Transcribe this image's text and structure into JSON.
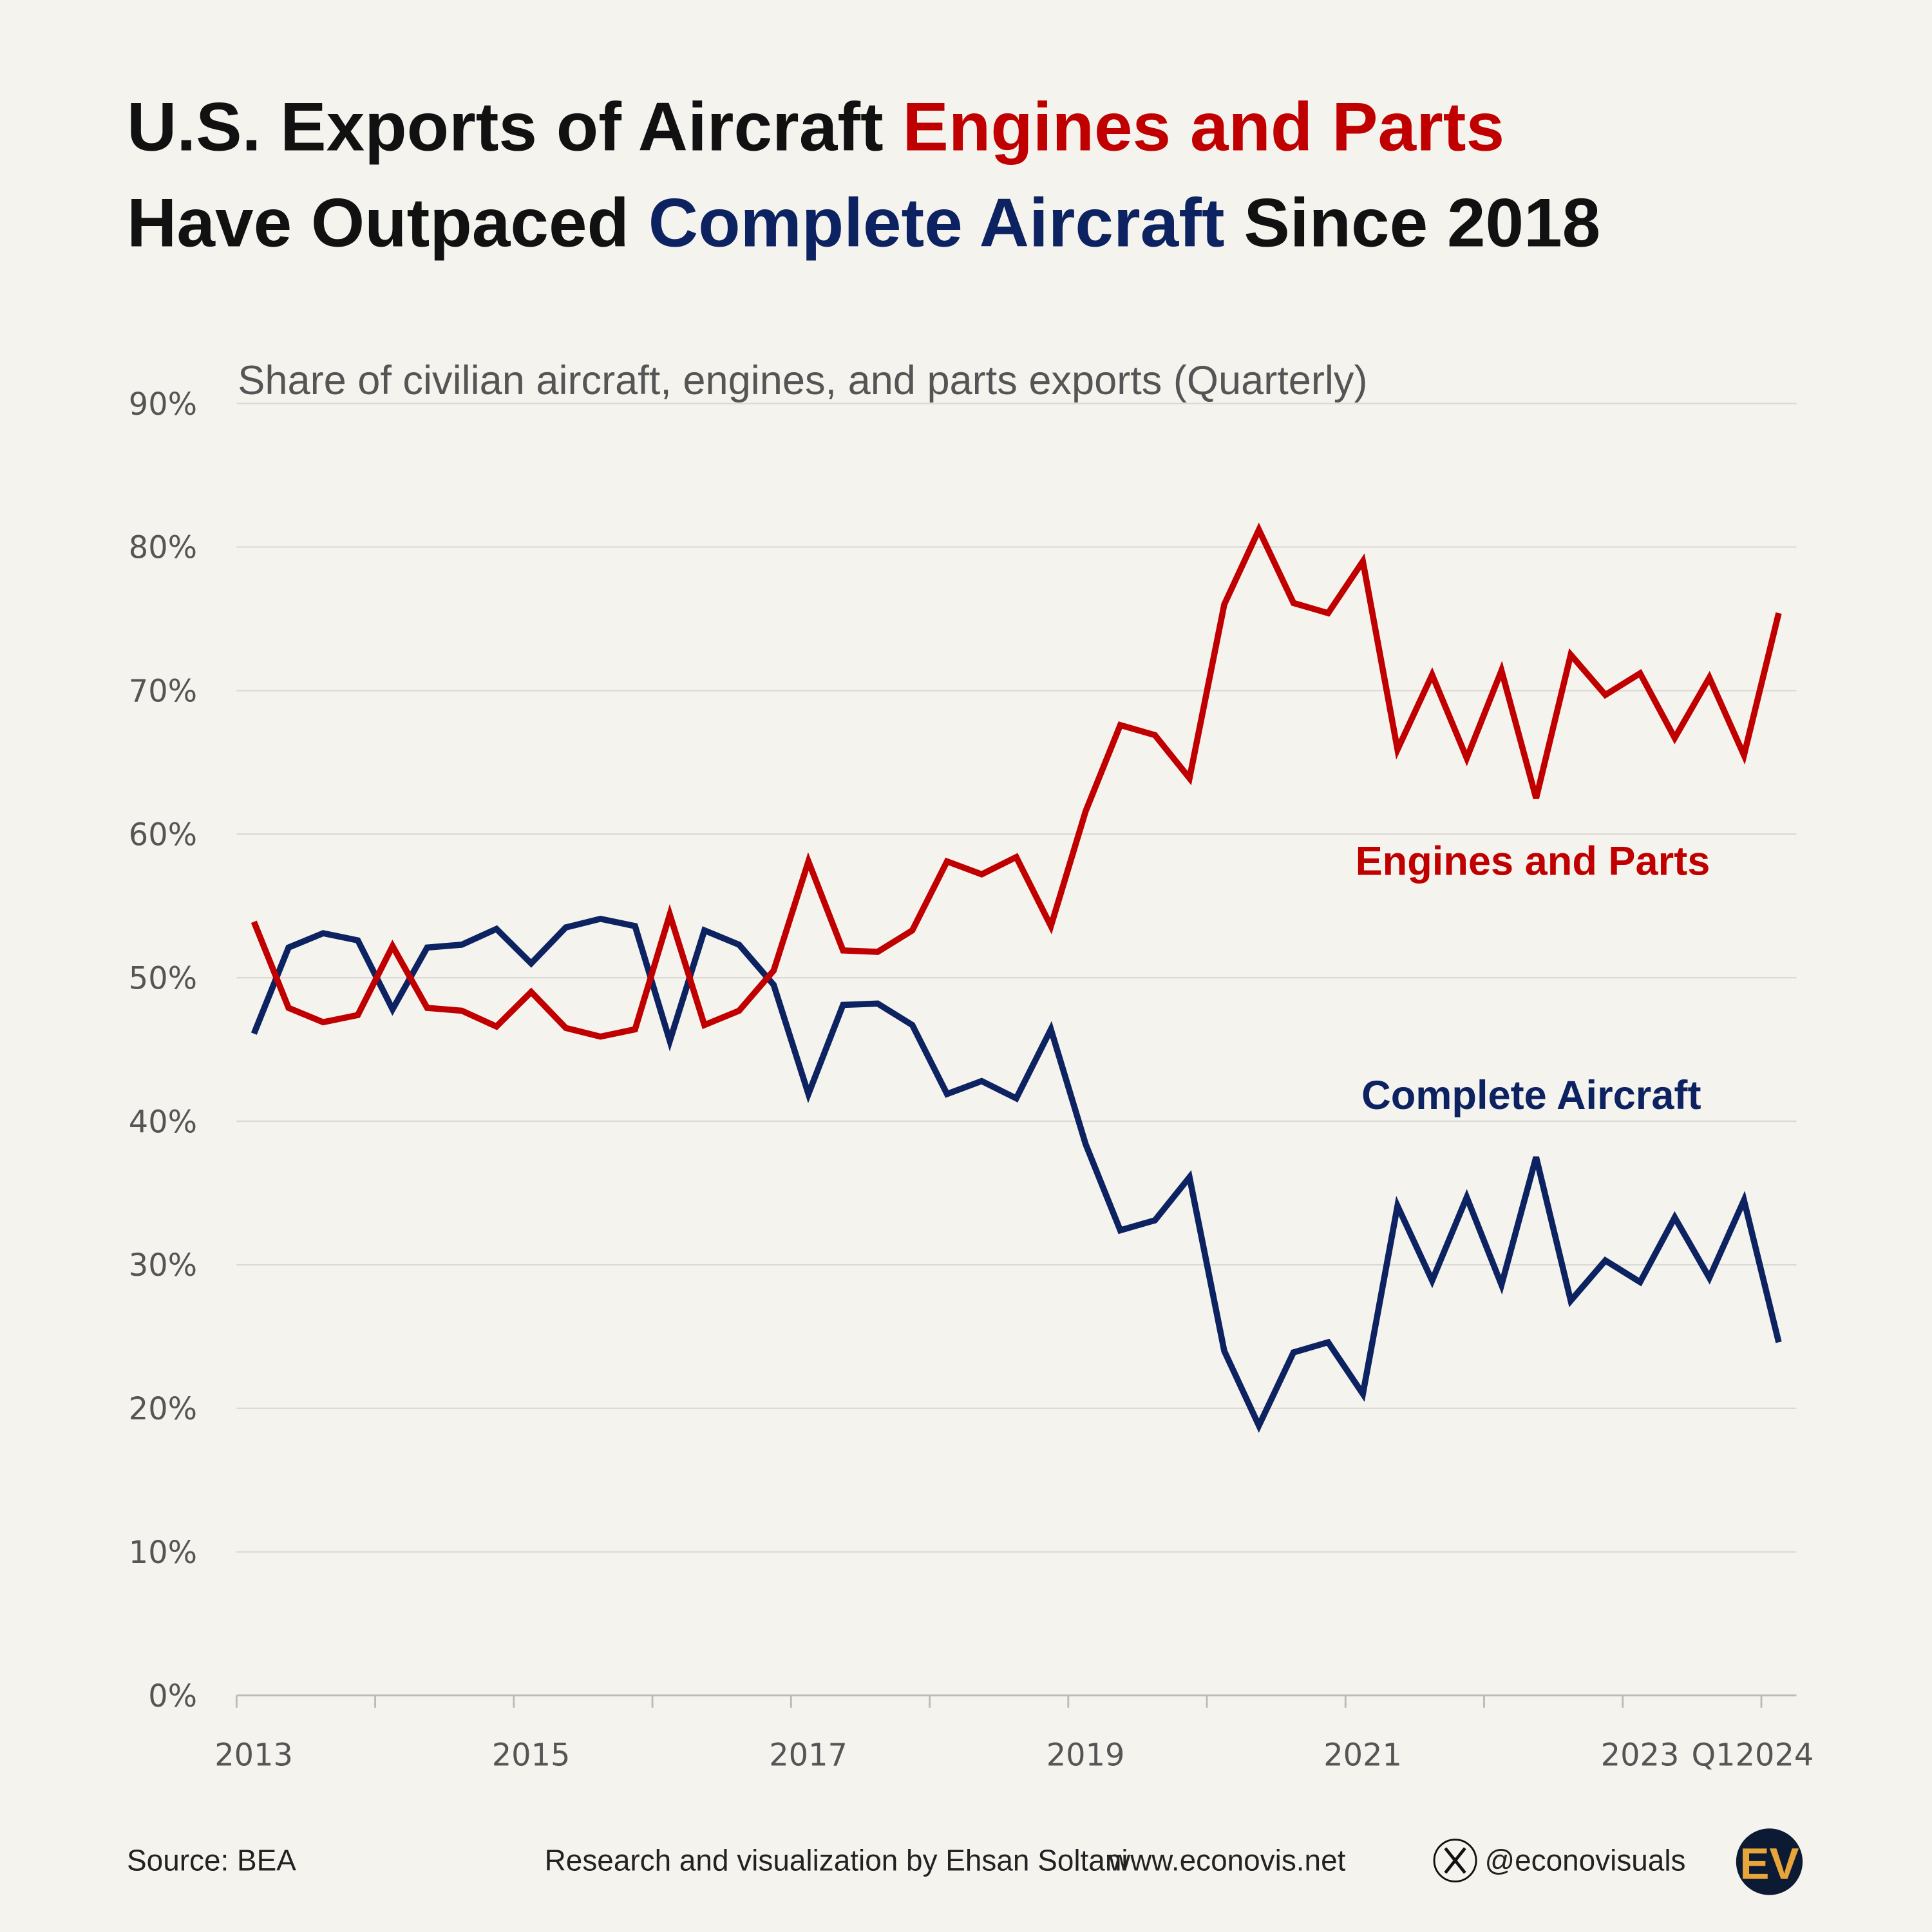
{
  "chart_data": {
    "type": "line",
    "title": {
      "line1_a": "U.S. Exports of Aircraft ",
      "line1_b": "Engines and Parts",
      "line2_a": "Have Outpaced ",
      "line2_b": "Complete Aircraft",
      "line2_c": " Since 2018"
    },
    "subtitle": "Share of civilian aircraft, engines, and parts exports (Quarterly)",
    "x_start": "2013 Q1",
    "x_end": "2024 Q1",
    "frequency": "quarterly",
    "x_tick_labels": [
      "2013",
      "2015",
      "2017",
      "2019",
      "2021",
      "2023",
      "Q12024"
    ],
    "x_tick_label_years": [
      2013,
      2015,
      2017,
      2019,
      2021,
      2023,
      2024
    ],
    "y_tick_labels": [
      "0%",
      "10%",
      "20%",
      "30%",
      "40%",
      "50%",
      "60%",
      "70%",
      "80%",
      "90%"
    ],
    "ylim": [
      0,
      90
    ],
    "grid": true,
    "series": [
      {
        "name": "Engines and Parts",
        "color": "#c00000",
        "values": [
          53.9,
          47.9,
          46.9,
          47.4,
          52.2,
          47.9,
          47.7,
          46.6,
          49.0,
          46.5,
          45.9,
          46.4,
          54.4,
          46.7,
          47.7,
          50.5,
          58.1,
          51.9,
          51.8,
          53.3,
          58.1,
          57.2,
          58.4,
          53.6,
          61.6,
          67.6,
          66.9,
          63.9,
          76.0,
          81.2,
          76.1,
          75.4,
          79.0,
          65.9,
          71.1,
          65.3,
          71.4,
          62.5,
          72.5,
          69.7,
          71.2,
          66.7,
          70.9,
          65.5,
          75.4
        ]
      },
      {
        "name": "Complete Aircraft",
        "color": "#0d2260",
        "values": [
          46.1,
          52.1,
          53.1,
          52.6,
          47.8,
          52.1,
          52.3,
          53.4,
          51.0,
          53.5,
          54.1,
          53.6,
          45.6,
          53.3,
          52.3,
          49.5,
          41.9,
          48.1,
          48.2,
          46.7,
          41.9,
          42.8,
          41.6,
          46.4,
          38.4,
          32.4,
          33.1,
          36.1,
          24.0,
          18.8,
          23.9,
          24.6,
          21.0,
          34.1,
          28.9,
          34.7,
          28.6,
          37.5,
          27.5,
          30.3,
          28.8,
          33.3,
          29.1,
          34.5,
          24.6
        ]
      }
    ]
  },
  "footer": {
    "source": "Source: BEA",
    "credit": "Research and visualization by Ehsan Soltani",
    "website": "www.econovis.net",
    "handle": "@econovisuals",
    "logo_text": "EV",
    "logo_colors": {
      "bg": "#0c1a33",
      "fg": "#e8a63a"
    }
  }
}
